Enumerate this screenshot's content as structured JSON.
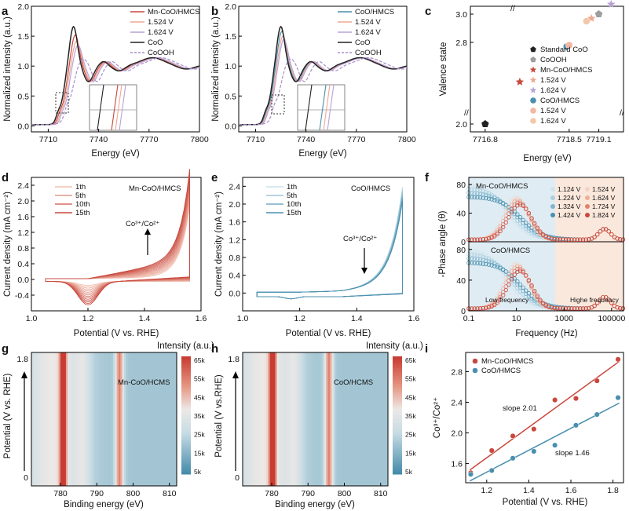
{
  "colors": {
    "red": "#c8483e",
    "red_light": "#f0a892",
    "lilac": "#b9a2d6",
    "black": "#222222",
    "dashed_purple": "#a98fcb",
    "blue": "#4a8fae",
    "blue_light": "#a7d0df",
    "grey_pent": "#9e9e9e",
    "bg_low": "#dfecf3",
    "bg_high": "#fbe8dc"
  },
  "chart_data": [
    {
      "panel": "a",
      "type": "line",
      "xlabel": "Energy (eV)",
      "ylabel": "Normalized intensity (a.u.)",
      "xlim": [
        7700,
        7800
      ],
      "ylim": [
        -0.1,
        2.0
      ],
      "xticks": [
        "7710",
        "7740",
        "7770",
        "7800"
      ],
      "yticks": [
        "0.0",
        "0.5",
        "1.0",
        "1.5",
        "2.0"
      ],
      "legend": [
        "Mn-CoO/HMCS",
        "1.524 V",
        "1.624 V",
        "CoO",
        "CoOOH"
      ],
      "series": [
        {
          "name": "Mn-CoO/HMCS",
          "shift": 1.0,
          "peak": 1.52
        },
        {
          "name": "1.524 V",
          "shift": 1.8,
          "peak": 1.42
        },
        {
          "name": "1.624 V",
          "shift": 2.6,
          "peak": 1.35
        },
        {
          "name": "CoO",
          "shift": 0,
          "peak": 1.66
        },
        {
          "name": "CoOOH",
          "shift": 5.0,
          "peak": 1.15
        }
      ]
    },
    {
      "panel": "b",
      "type": "line",
      "xlabel": "Energy (eV)",
      "ylabel": "Normalized intensity (a.u.)",
      "xlim": [
        7700,
        7800
      ],
      "ylim": [
        -0.1,
        2.0
      ],
      "xticks": [
        "7710",
        "7740",
        "7770",
        "7800"
      ],
      "yticks": [
        "0.0",
        "0.5",
        "1.0",
        "1.5",
        "2.0"
      ],
      "legend": [
        "CoO/HMCS",
        "1.524 V",
        "1.624 V",
        "CoO",
        "CoOOH"
      ],
      "series": [
        {
          "name": "CoO/HMCS",
          "shift": 0.6,
          "peak": 1.58
        },
        {
          "name": "1.524 V",
          "shift": 1.2,
          "peak": 1.5
        },
        {
          "name": "1.624 V",
          "shift": 1.8,
          "peak": 1.45
        },
        {
          "name": "CoO",
          "shift": 0,
          "peak": 1.66
        },
        {
          "name": "CoOOH",
          "shift": 5.0,
          "peak": 1.15
        }
      ]
    },
    {
      "panel": "c",
      "type": "scatter",
      "xlabel": "Energy (eV)",
      "ylabel": "Valence state",
      "xticks": [
        "7716.8",
        "7718.5",
        "7719.1"
      ],
      "yticks": [
        "2.0",
        "2.8",
        "3.0"
      ],
      "points": [
        {
          "name": "Standard CoO",
          "x": 7716.8,
          "y": 2.0,
          "marker": "pentagon"
        },
        {
          "name": "CoOOH",
          "x": 7719.1,
          "y": 3.0,
          "marker": "pentagon"
        },
        {
          "name": "Mn-CoO/HMCS",
          "x": 7717.5,
          "y": 2.52,
          "marker": "star"
        },
        {
          "name": "1.524 V",
          "x": 7718.95,
          "y": 2.97,
          "marker": "star"
        },
        {
          "name": "1.624 V",
          "x": 7719.35,
          "y": 3.07,
          "marker": "star"
        },
        {
          "name": "CoO/HMCS",
          "x": 7718.45,
          "y": 2.77,
          "marker": "circle"
        },
        {
          "name": "1.524 V",
          "x": 7718.5,
          "y": 2.78,
          "marker": "circle"
        },
        {
          "name": "1.624 V",
          "x": 7718.85,
          "y": 2.95,
          "marker": "circle"
        }
      ],
      "legend": [
        "Standard CoO",
        "CoOOH",
        "Mn-CoO/HMCS",
        "1.524 V",
        "1.624 V",
        "CoO/HMCS",
        "1.524 V",
        "1.624 V"
      ]
    },
    {
      "panel": "d",
      "type": "line",
      "title": "Mn-CoO/HMCS",
      "xlabel": "Potential (V vs. RHE)",
      "ylabel": "Current density (mA cm⁻²)",
      "xlim": [
        1.0,
        1.6
      ],
      "ylim": [
        -0.8,
        2.6
      ],
      "xticks": [
        "1.0",
        "1.2",
        "1.4",
        "1.6"
      ],
      "yticks": [
        "-0.4",
        "0.0",
        "0.4",
        "0.8",
        "1.2",
        "1.6",
        "2.0",
        "2.4"
      ],
      "legend": [
        "1th",
        "5th",
        "10th",
        "15th"
      ],
      "annotation": "Co³⁺/Co²⁺",
      "cycles": 15
    },
    {
      "panel": "e",
      "type": "line",
      "title": "CoO/HMCS",
      "xlabel": "Potential (V vs. RHE)",
      "ylabel": "Current density (mA cm⁻²)",
      "xlim": [
        1.0,
        1.6
      ],
      "ylim": [
        -0.4,
        2.6
      ],
      "xticks": [
        "1.0",
        "1.2",
        "1.4",
        "1.6"
      ],
      "yticks": [
        "0.0",
        "0.4",
        "0.8",
        "1.2",
        "1.6",
        "2.0",
        "2.4"
      ],
      "legend": [
        "1th",
        "5th",
        "10th",
        "15th"
      ],
      "annotation": "Co³⁺/Co²⁺",
      "cycles": 15
    },
    {
      "panel": "f",
      "type": "scatter",
      "xlabel": "Frequency (Hz)",
      "ylabel": "-Phase angle (θ)",
      "xticks": [
        "0.1",
        "10",
        "1000",
        "100000"
      ],
      "yticks_top": [
        "0",
        "40",
        "80"
      ],
      "yticks_bottom": [
        "0",
        "40",
        "80"
      ],
      "subplot_titles": [
        "Mn-CoO/HMCS",
        "CoO/HMCS"
      ],
      "legend": [
        "1.124 V",
        "1.224 V",
        "1.324 V",
        "1.424 V",
        "1.524 V",
        "1.624 V",
        "1.724 V",
        "1.824 V"
      ],
      "region_labels": [
        "Low frequency",
        "Highe frequency"
      ]
    },
    {
      "panel": "g",
      "type": "heatmap",
      "title": "Mn-CoO/HCMS",
      "xlabel": "Binding energy (eV)",
      "ylabel": "Potential (V vs. RHE)",
      "xticks": [
        "780",
        "790",
        "800",
        "810"
      ],
      "yticks": [
        "0",
        "1.8"
      ],
      "colorbar_title": "Intensity (a.u.)",
      "colorbar_ticks": [
        "65k",
        "55k",
        "45k",
        "35k",
        "25k",
        "15k",
        "5k"
      ],
      "peaks_eV": [
        780.5,
        796.0
      ]
    },
    {
      "panel": "h",
      "type": "heatmap",
      "title": "CoO/HCMS",
      "xlabel": "Binding energy (eV)",
      "ylabel": "Potential (V vs.RHE)",
      "xticks": [
        "780",
        "790",
        "800",
        "810"
      ],
      "yticks": [
        "0",
        "1.8"
      ],
      "colorbar_title": "Intensity (a.u.)",
      "colorbar_ticks": [
        "65k",
        "55k",
        "45k",
        "35k",
        "25k",
        "15k",
        "5k"
      ],
      "peaks_eV": [
        780.0,
        795.5
      ]
    },
    {
      "panel": "i",
      "type": "scatter",
      "xlabel": "Potential (V vs. RHE)",
      "ylabel": "Co³⁺/Co²⁺",
      "xlim": [
        1.1,
        1.85
      ],
      "ylim": [
        1.35,
        3.05
      ],
      "xticks": [
        "1.2",
        "1.4",
        "1.6",
        "1.8"
      ],
      "yticks": [
        "1.6",
        "2.0",
        "2.4",
        "2.8"
      ],
      "series": [
        {
          "name": "Mn-CoO/HMCS",
          "slope_label": "slope 2.01",
          "x": [
            1.124,
            1.224,
            1.324,
            1.424,
            1.524,
            1.624,
            1.724,
            1.824
          ],
          "y": [
            1.48,
            1.77,
            1.96,
            2.05,
            2.43,
            2.45,
            2.68,
            2.96
          ]
        },
        {
          "name": "CoO/HMCS",
          "slope_label": "slope 1.46",
          "x": [
            1.124,
            1.224,
            1.324,
            1.424,
            1.524,
            1.624,
            1.724,
            1.824
          ],
          "y": [
            1.46,
            1.51,
            1.67,
            1.76,
            1.84,
            2.1,
            2.24,
            2.46
          ]
        }
      ]
    }
  ],
  "panel_labels": [
    "a",
    "b",
    "c",
    "d",
    "e",
    "f",
    "g",
    "h",
    "i"
  ],
  "y_break_label": "//"
}
